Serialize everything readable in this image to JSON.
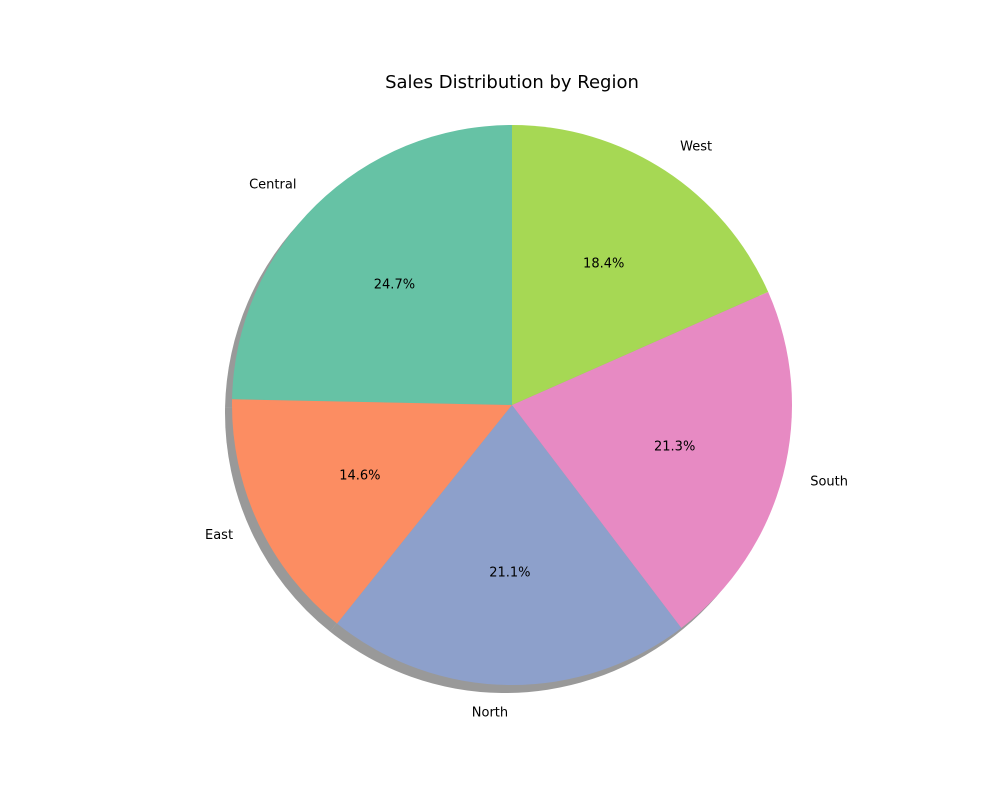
{
  "chart_data": {
    "type": "pie",
    "title": "Sales Distribution by Region",
    "start_angle_deg": 90,
    "direction": "counterclockwise",
    "shadow": true,
    "slices": [
      {
        "label": "Central",
        "value": 24.7,
        "pct_label": "24.7%",
        "color": "#66c2a5"
      },
      {
        "label": "East",
        "value": 14.6,
        "pct_label": "14.6%",
        "color": "#fc8d62"
      },
      {
        "label": "North",
        "value": 21.1,
        "pct_label": "21.1%",
        "color": "#8da0cb"
      },
      {
        "label": "South",
        "value": 21.3,
        "pct_label": "21.3%",
        "color": "#e78ac3"
      },
      {
        "label": "West",
        "value": 18.4,
        "pct_label": "18.4%",
        "color": "#a6d854"
      }
    ]
  }
}
